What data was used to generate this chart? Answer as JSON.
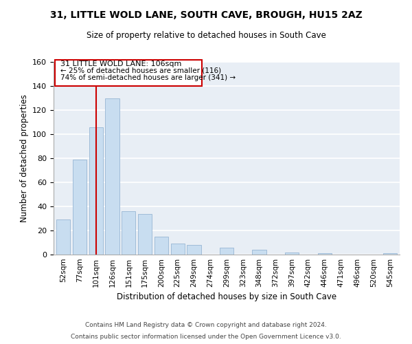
{
  "title": "31, LITTLE WOLD LANE, SOUTH CAVE, BROUGH, HU15 2AZ",
  "subtitle": "Size of property relative to detached houses in South Cave",
  "xlabel": "Distribution of detached houses by size in South Cave",
  "ylabel": "Number of detached properties",
  "categories": [
    "52sqm",
    "77sqm",
    "101sqm",
    "126sqm",
    "151sqm",
    "175sqm",
    "200sqm",
    "225sqm",
    "249sqm",
    "274sqm",
    "299sqm",
    "323sqm",
    "348sqm",
    "372sqm",
    "397sqm",
    "422sqm",
    "446sqm",
    "471sqm",
    "496sqm",
    "520sqm",
    "545sqm"
  ],
  "bar_values": [
    29,
    79,
    106,
    130,
    36,
    34,
    15,
    9,
    8,
    0,
    6,
    0,
    4,
    0,
    2,
    0,
    1,
    0,
    0,
    0,
    1
  ],
  "bar_color": "#c8ddf0",
  "bar_edge_color": "#a0bcd8",
  "ylim": [
    0,
    160
  ],
  "yticks": [
    0,
    20,
    40,
    60,
    80,
    100,
    120,
    140,
    160
  ],
  "property_line_color": "#cc0000",
  "annotation_title": "31 LITTLE WOLD LANE: 106sqm",
  "annotation_line1": "← 25% of detached houses are smaller (116)",
  "annotation_line2": "74% of semi-detached houses are larger (341) →",
  "annotation_box_color": "#ffffff",
  "annotation_box_edge": "#cc0000",
  "background_color": "#e8eef5",
  "footer1": "Contains HM Land Registry data © Crown copyright and database right 2024.",
  "footer2": "Contains public sector information licensed under the Open Government Licence v3.0."
}
